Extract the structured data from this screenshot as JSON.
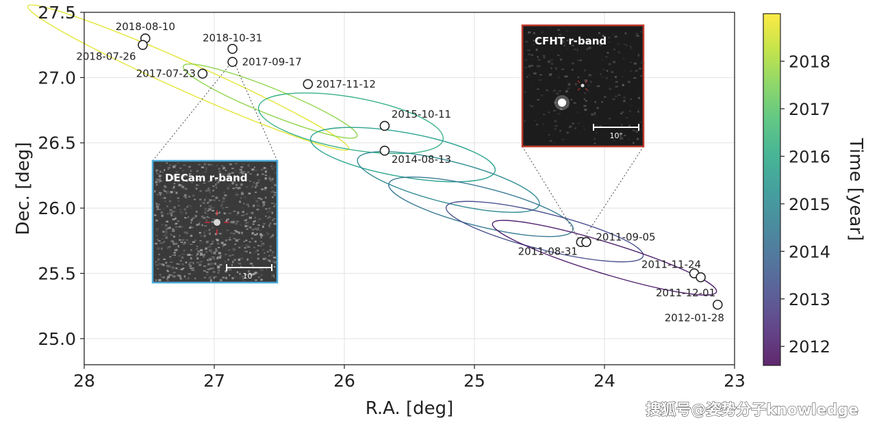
{
  "chart_data": {
    "type": "scatter",
    "xlabel": "R.A. [deg]",
    "ylabel": "Dec. [deg]",
    "xlim": [
      28,
      23
    ],
    "ylim": [
      24.8,
      27.5
    ],
    "x_ticks": [
      28,
      27,
      26,
      25,
      24,
      23
    ],
    "y_ticks": [
      25.0,
      25.5,
      26.0,
      26.5,
      27.0,
      27.5
    ],
    "y_tick_labels": [
      "25.0",
      "25.5",
      "26.0",
      "26.5",
      "27.0",
      "27.5"
    ],
    "grid": true,
    "points": [
      {
        "label": "2018-08-10",
        "ra": 27.53,
        "dec": 27.3,
        "year": 2018.61
      },
      {
        "label": "2018-07-26",
        "ra": 27.55,
        "dec": 27.25,
        "year": 2018.57
      },
      {
        "label": "2018-10-31",
        "ra": 26.86,
        "dec": 27.22,
        "year": 2018.83
      },
      {
        "label": "2017-07-23",
        "ra": 27.09,
        "dec": 27.03,
        "year": 2017.56
      },
      {
        "label": "2017-09-17",
        "ra": 26.86,
        "dec": 27.12,
        "year": 2017.71
      },
      {
        "label": "2017-11-12",
        "ra": 26.28,
        "dec": 26.95,
        "year": 2017.86
      },
      {
        "label": "2015-10-11",
        "ra": 25.69,
        "dec": 26.63,
        "year": 2015.78
      },
      {
        "label": "2014-08-13",
        "ra": 25.69,
        "dec": 26.44,
        "year": 2014.62
      },
      {
        "label": "2011-08-31",
        "ra": 24.18,
        "dec": 25.74,
        "year": 2011.67
      },
      {
        "label": "2011-09-05",
        "ra": 24.14,
        "dec": 25.74,
        "year": 2011.68
      },
      {
        "label": "2011-11-24",
        "ra": 23.31,
        "dec": 25.5,
        "year": 2011.9
      },
      {
        "label": "2011-12-01",
        "ra": 23.26,
        "dec": 25.47,
        "year": 2011.92
      },
      {
        "label": "2012-01-28",
        "ra": 23.13,
        "dec": 25.26,
        "year": 2012.08
      }
    ],
    "ellipses": [
      {
        "cra": 27.2,
        "cdec": 27.0,
        "semi_major_deg": 1.35,
        "semi_minor_deg": 0.11,
        "angle_deg": 24,
        "year": 2018.7
      },
      {
        "cra": 26.57,
        "cdec": 26.82,
        "semi_major_deg": 0.72,
        "semi_minor_deg": 0.1,
        "angle_deg": 22,
        "year": 2017.7
      },
      {
        "cra": 25.95,
        "cdec": 26.65,
        "semi_major_deg": 0.72,
        "semi_minor_deg": 0.2,
        "angle_deg": 10,
        "year": 2016.2
      },
      {
        "cra": 25.55,
        "cdec": 26.41,
        "semi_major_deg": 0.72,
        "semi_minor_deg": 0.17,
        "angle_deg": 10,
        "year": 2015.7
      },
      {
        "cra": 25.2,
        "cdec": 26.2,
        "semi_major_deg": 0.72,
        "semi_minor_deg": 0.16,
        "angle_deg": 14,
        "year": 2015.0
      },
      {
        "cra": 24.95,
        "cdec": 26.01,
        "semi_major_deg": 0.73,
        "semi_minor_deg": 0.15,
        "angle_deg": 14,
        "year": 2014.4
      },
      {
        "cra": 24.46,
        "cdec": 25.82,
        "semi_major_deg": 0.78,
        "semi_minor_deg": 0.14,
        "angle_deg": 14,
        "year": 2013.2
      },
      {
        "cra": 24.0,
        "cdec": 25.62,
        "semi_major_deg": 0.9,
        "semi_minor_deg": 0.12,
        "angle_deg": 17,
        "year": 2012.0
      }
    ],
    "colorbar": {
      "label": "Time [year]",
      "range": [
        2011.6,
        2019.0
      ],
      "ticks": [
        2012,
        2013,
        2014,
        2015,
        2016,
        2017,
        2018
      ],
      "tick_labels": [
        "2012",
        "2013",
        "2014",
        "2015",
        "2016",
        "2017",
        "2018"
      ],
      "colormap": "viridis"
    },
    "insets": [
      {
        "title": "DECam r-band",
        "scale_label": "10\"",
        "border_color": "#4aa9d8",
        "background": "#3a3a3a",
        "connects_to": "2017-09-17"
      },
      {
        "title": "CFHT r-band",
        "scale_label": "10\"",
        "border_color": "#c0392b",
        "background": "#1c1c1c",
        "connects_to": "2011-08-31"
      }
    ]
  },
  "watermark": "搜狐号@姿势分子knowledge",
  "colors": {
    "grid": "#e2e2e2",
    "axis": "#222222",
    "marker_fill": "#ffffff",
    "marker_stroke": "#222222"
  }
}
